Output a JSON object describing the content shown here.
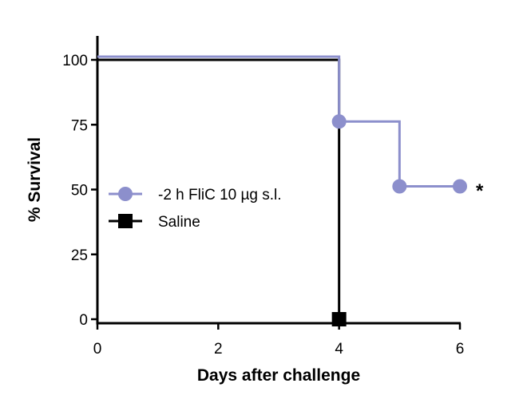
{
  "chart_data": {
    "type": "line",
    "step": true,
    "title": "",
    "xlabel": "Days after challenge",
    "ylabel": "% Survival",
    "xlim": [
      0,
      6
    ],
    "ylim": [
      0,
      100
    ],
    "xticks": [
      0,
      2,
      4,
      6
    ],
    "yticks": [
      0,
      25,
      50,
      75,
      100
    ],
    "legend_position": "center-left",
    "annotation": "*",
    "series": [
      {
        "name": "-2 h FliC 10 µg s.l.",
        "color": "#8c8fcc",
        "marker": "circle",
        "x": [
          0,
          4,
          5,
          6
        ],
        "y": [
          100,
          75,
          50,
          50
        ],
        "marked": [
          false,
          true,
          true,
          true
        ]
      },
      {
        "name": "Saline",
        "color": "#000000",
        "marker": "square",
        "x": [
          0,
          4
        ],
        "y": [
          100,
          0
        ],
        "marked": [
          false,
          true
        ]
      }
    ]
  }
}
